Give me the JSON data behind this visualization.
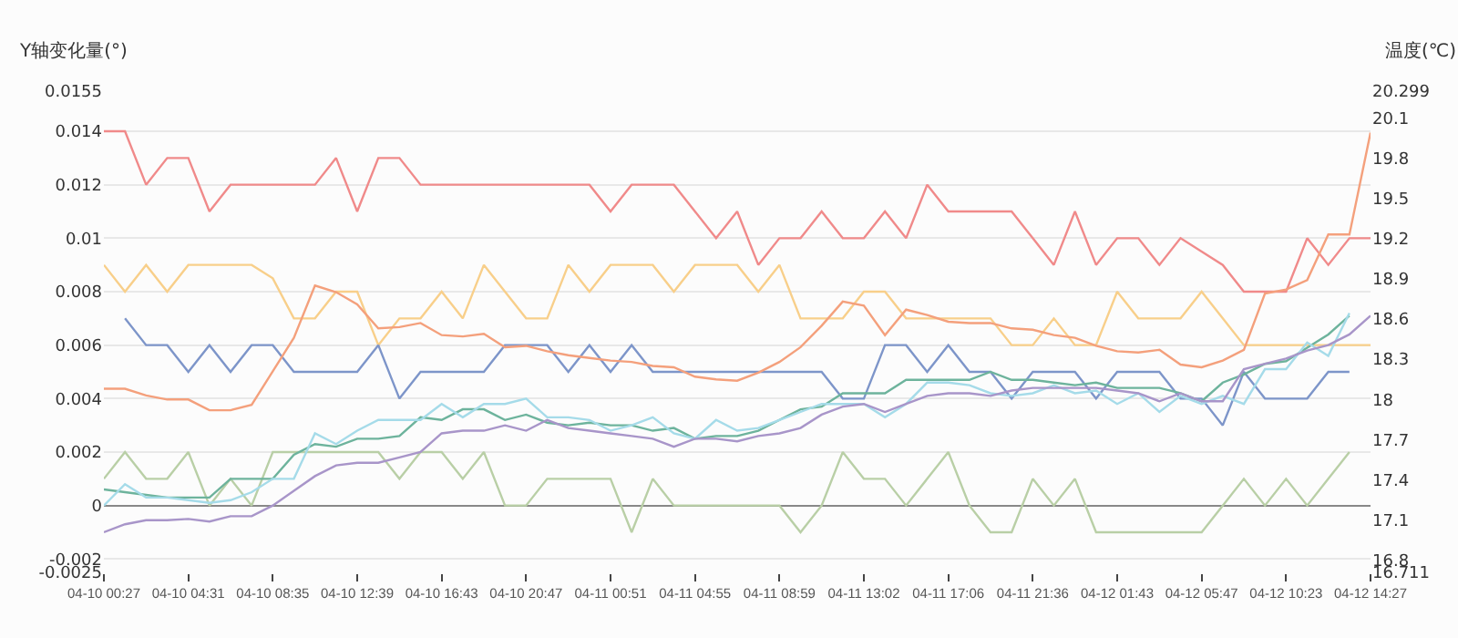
{
  "chart_data": {
    "type": "line",
    "ylabel": "Y轴变化量(°)",
    "y2label": "温度(℃)",
    "categories": [
      "04-10 00:27",
      null,
      null,
      null,
      "04-10 04:31",
      null,
      null,
      null,
      "04-10 08:35",
      null,
      null,
      null,
      "04-10 12:39",
      null,
      null,
      null,
      "04-10 16:43",
      null,
      null,
      null,
      "04-10 20:47",
      null,
      null,
      null,
      "04-11 00:51",
      null,
      null,
      null,
      "04-11 04:55",
      null,
      null,
      null,
      "04-11 08:59",
      null,
      null,
      null,
      "04-11 13:02",
      null,
      null,
      null,
      "04-11 17:06",
      null,
      null,
      null,
      "04-11 21:36",
      null,
      null,
      null,
      "04-12 01:43",
      null,
      null,
      null,
      "04-12 05:47",
      null,
      null,
      null,
      "04-12 10:23",
      null,
      null,
      null,
      "04-12 14:27"
    ],
    "series": [
      {
        "color": "#f08a8a",
        "values": [
          0.014,
          0.014,
          0.012,
          0.013,
          0.013,
          0.011,
          0.012,
          0.012,
          0.012,
          0.012,
          0.012,
          0.013,
          0.011,
          0.013,
          0.013,
          0.012,
          0.012,
          0.012,
          0.012,
          0.012,
          0.012,
          0.012,
          0.012,
          0.012,
          0.011,
          0.012,
          0.012,
          0.012,
          0.011,
          0.01,
          0.011,
          0.009,
          0.01,
          0.01,
          0.011,
          0.01,
          0.01,
          0.011,
          0.01,
          0.012,
          0.011,
          0.011,
          0.011,
          0.011,
          0.01,
          0.009,
          0.011,
          0.009,
          0.01,
          0.01,
          0.009,
          0.01,
          0.0095,
          0.009,
          0.008,
          0.008,
          0.008,
          0.01,
          0.009,
          0.01,
          0.01
        ]
      },
      {
        "color": "#f8cf8a",
        "values": [
          0.009,
          0.008,
          0.009,
          0.008,
          0.009,
          0.009,
          0.009,
          0.009,
          0.0085,
          0.007,
          0.007,
          0.008,
          0.008,
          0.006,
          0.007,
          0.007,
          0.008,
          0.007,
          0.009,
          0.008,
          0.007,
          0.007,
          0.009,
          0.008,
          0.009,
          0.009,
          0.009,
          0.008,
          0.009,
          0.009,
          0.009,
          0.008,
          0.009,
          0.007,
          0.007,
          0.007,
          0.008,
          0.008,
          0.007,
          0.007,
          0.007,
          0.007,
          0.007,
          0.006,
          0.006,
          0.007,
          0.006,
          0.006,
          0.008,
          0.007,
          0.007,
          0.007,
          0.008,
          0.007,
          0.006,
          0.006,
          0.006,
          0.006,
          0.006,
          0.006,
          0.006
        ]
      },
      {
        "color": "#7d95c9",
        "values": [
          null,
          0.007,
          0.006,
          0.006,
          0.005,
          0.006,
          0.005,
          0.006,
          0.006,
          0.005,
          0.005,
          0.005,
          0.005,
          0.006,
          0.004,
          0.005,
          0.005,
          0.005,
          0.005,
          0.006,
          0.006,
          0.006,
          0.005,
          0.006,
          0.005,
          0.006,
          0.005,
          0.005,
          0.005,
          0.005,
          0.005,
          0.005,
          0.005,
          0.005,
          0.005,
          0.004,
          0.004,
          0.006,
          0.006,
          0.005,
          0.006,
          0.005,
          0.005,
          0.004,
          0.005,
          0.005,
          0.005,
          0.004,
          0.005,
          0.005,
          0.005,
          0.004,
          0.004,
          0.003,
          0.005,
          0.004,
          0.004,
          0.004,
          0.005,
          0.005,
          null
        ]
      },
      {
        "color": "#b9cfa6",
        "values": [
          0.001,
          0.002,
          0.001,
          0.001,
          0.002,
          0,
          0.001,
          0,
          0.002,
          0.002,
          0.002,
          0.002,
          0.002,
          0.002,
          0.001,
          0.002,
          0.002,
          0.001,
          0.002,
          0,
          0,
          0.001,
          0.001,
          0.001,
          0.001,
          -0.001,
          0.001,
          0,
          0,
          0,
          0,
          0,
          0,
          -0.001,
          0,
          0.002,
          0.001,
          0.001,
          0,
          0.001,
          0.002,
          0,
          -0.001,
          -0.001,
          0.001,
          0,
          0.001,
          -0.001,
          -0.001,
          -0.001,
          -0.001,
          -0.001,
          -0.001,
          0,
          0.001,
          0,
          0.001,
          0,
          0.001,
          0.002,
          null
        ]
      },
      {
        "color": "#6db39c",
        "values": [
          0.0006,
          0.0005,
          0.0004,
          0.0003,
          0.0003,
          0.0003,
          0.001,
          0.001,
          0.001,
          0.0019,
          0.0023,
          0.0022,
          0.0025,
          0.0025,
          0.0026,
          0.0033,
          0.0032,
          0.0036,
          0.0036,
          0.0032,
          0.0034,
          0.0031,
          0.003,
          0.0031,
          0.003,
          0.003,
          0.0028,
          0.0029,
          0.0025,
          0.0026,
          0.0026,
          0.0028,
          0.0032,
          0.0036,
          0.0037,
          0.0042,
          0.0042,
          0.0042,
          0.0047,
          0.0047,
          0.0047,
          0.0047,
          0.005,
          0.0047,
          0.0047,
          0.0046,
          0.0045,
          0.0046,
          0.0044,
          0.0044,
          0.0044,
          0.0042,
          0.0039,
          0.0046,
          0.0049,
          0.0053,
          0.0054,
          0.0059,
          0.0064,
          0.0071,
          null
        ]
      },
      {
        "color": "#a5dbe9",
        "values": [
          0,
          0.0008,
          0.0003,
          0.0003,
          0.0002,
          0.0001,
          0.0002,
          0.0005,
          0.001,
          0.001,
          0.0027,
          0.0023,
          0.0028,
          0.0032,
          0.0032,
          0.0032,
          0.0038,
          0.0033,
          0.0038,
          0.0038,
          0.004,
          0.0033,
          0.0033,
          0.0032,
          0.0028,
          0.003,
          0.0033,
          0.0027,
          0.0025,
          0.0032,
          0.0028,
          0.0029,
          0.0032,
          0.0035,
          0.0038,
          0.0038,
          0.0038,
          0.0033,
          0.0038,
          0.0046,
          0.0046,
          0.0045,
          0.0042,
          0.0041,
          0.0042,
          0.0045,
          0.0042,
          0.0043,
          0.0038,
          0.0042,
          0.0035,
          0.0041,
          0.0038,
          0.0041,
          0.0038,
          0.0051,
          0.0051,
          0.0061,
          0.0056,
          0.0072,
          null
        ]
      },
      {
        "color": "#a895c9",
        "values": [
          -0.001,
          -0.0007,
          -0.00055,
          -0.00055,
          -0.0005,
          -0.0006,
          -0.0004,
          -0.0004,
          0,
          0.00055,
          0.0011,
          0.0015,
          0.0016,
          0.0016,
          0.0018,
          0.002,
          0.0027,
          0.0028,
          0.0028,
          0.003,
          0.0028,
          0.0032,
          0.0029,
          0.0028,
          0.0027,
          0.0026,
          0.0025,
          0.0022,
          0.0025,
          0.0025,
          0.0024,
          0.0026,
          0.0027,
          0.0029,
          0.0034,
          0.0037,
          0.0038,
          0.0035,
          0.0038,
          0.0041,
          0.0042,
          0.0042,
          0.0041,
          0.0043,
          0.0044,
          0.0044,
          0.0044,
          0.0044,
          0.0043,
          0.0042,
          0.0039,
          0.0042,
          0.0039,
          0.0039,
          0.0051,
          0.0053,
          0.0055,
          0.0058,
          0.006,
          0.0064,
          0.0071
        ]
      },
      {
        "color": "#f4a07c",
        "axis": "y2",
        "values": [
          18.08,
          18.08,
          18.03,
          18.0,
          18.0,
          17.92,
          17.92,
          17.96,
          18.21,
          18.46,
          18.85,
          18.8,
          18.71,
          18.53,
          18.54,
          18.57,
          18.48,
          18.47,
          18.49,
          18.39,
          18.4,
          18.36,
          18.33,
          18.31,
          18.29,
          18.28,
          18.25,
          18.24,
          18.17,
          18.15,
          18.14,
          18.2,
          18.28,
          18.39,
          18.55,
          18.73,
          18.7,
          18.48,
          18.67,
          18.63,
          18.58,
          18.57,
          18.57,
          18.53,
          18.52,
          18.48,
          18.46,
          18.4,
          18.36,
          18.35,
          18.37,
          18.26,
          18.24,
          18.29,
          18.37,
          18.79,
          18.82,
          18.89,
          19.23,
          19.23,
          19.99
        ]
      }
    ],
    "ylim": [
      -0.0025,
      0.0155
    ],
    "yticks": [
      -0.0025,
      -0.002,
      0,
      0.002,
      0.004,
      {
        "value": 0.006,
        "label": "0.006"
      },
      0.008,
      {
        "value": 0.01,
        "label": "0.01"
      },
      0.012,
      0.014,
      0.0155
    ],
    "y2lim": [
      16.711,
      20.299
    ],
    "y2ticks": [
      16.711,
      16.8,
      17.1,
      17.4,
      17.7,
      {
        "value": 18,
        "label": "18"
      },
      18.3,
      18.6,
      18.9,
      19.2,
      19.5,
      19.8,
      20.1,
      20.299
    ],
    "grid": "y",
    "legend": false,
    "marker": "none",
    "line_style": "solid"
  }
}
